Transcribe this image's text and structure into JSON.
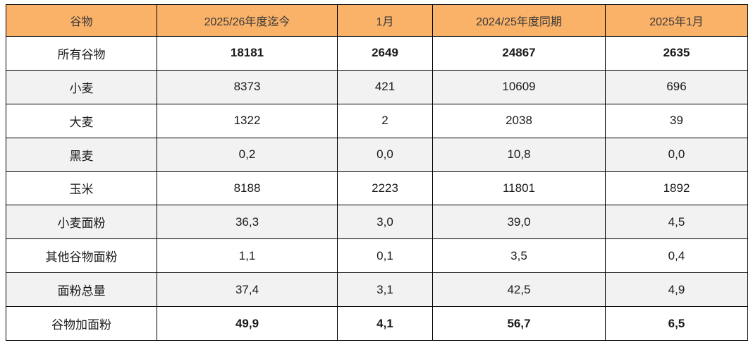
{
  "chart_data": {
    "type": "table",
    "title": "",
    "columns": [
      "谷物",
      "2025/26年度迄今",
      "1月",
      "2024/25年度同期",
      "2025年1月"
    ],
    "rows": [
      [
        "所有谷物",
        "18181",
        "2649",
        "24867",
        "2635"
      ],
      [
        "小麦",
        "8373",
        "421",
        "10609",
        "696"
      ],
      [
        "大麦",
        "1322",
        "2",
        "2038",
        "39"
      ],
      [
        "黑麦",
        "0,2",
        "0,0",
        "10,8",
        "0,0"
      ],
      [
        "玉米",
        "8188",
        "2223",
        "11801",
        "1892"
      ],
      [
        "小麦面粉",
        "36,3",
        "3,0",
        "39,0",
        "4,5"
      ],
      [
        "其他谷物面粉",
        "1,1",
        "0,1",
        "3,5",
        "0,4"
      ],
      [
        "面粉总量",
        "37,4",
        "3,1",
        "42,5",
        "4,9"
      ],
      [
        "谷物加面粉",
        "49,9",
        "4,1",
        "56,7",
        "6,5"
      ]
    ],
    "layout_hints": {
      "bold_value_rows": [
        0,
        8
      ],
      "shaded_rows": [
        1,
        3,
        5,
        7
      ],
      "decimal_separator": "comma"
    }
  },
  "colors": {
    "header_bg": "#FAB168",
    "shaded_row_bg": "#F2F2F2",
    "border": "#000000"
  }
}
